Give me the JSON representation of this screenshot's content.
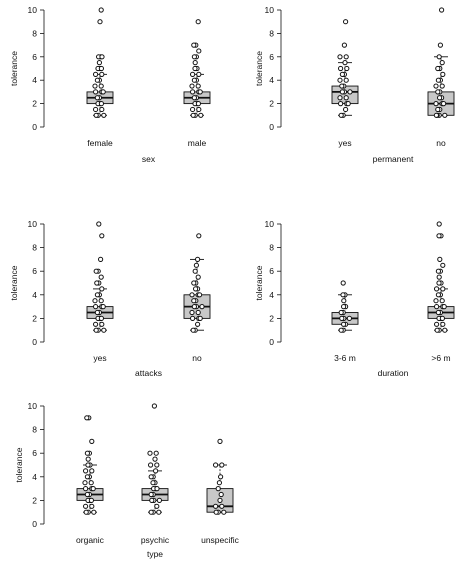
{
  "figure": {
    "colors": {
      "box_fill": "#c8c8c8",
      "line": "#111111",
      "point_fill": "#ffffff"
    }
  },
  "chart_data": [
    {
      "type": "boxplot",
      "ylabel": "tolerance",
      "xlabel": "sex",
      "ylim": [
        0,
        10
      ],
      "yticks": [
        0,
        2,
        4,
        6,
        8,
        10
      ],
      "grid": false,
      "legend": "none",
      "categories": [
        "female",
        "male"
      ],
      "boxes": [
        {
          "q1": 2,
          "median": 2.5,
          "q3": 3,
          "whisker_low": 1,
          "whisker_high": 4.5,
          "points": [
            1,
            1,
            1,
            1.5,
            1.5,
            2,
            2,
            2,
            2.5,
            2.5,
            3,
            3,
            3,
            3.5,
            3.5,
            4,
            4,
            4.5,
            4.5,
            5,
            5,
            5,
            5.5,
            6,
            6,
            6,
            9,
            10
          ]
        },
        {
          "q1": 2,
          "median": 2.5,
          "q3": 3,
          "whisker_low": 1,
          "whisker_high": 4.5,
          "points": [
            1,
            1,
            1,
            1.5,
            1.5,
            2,
            2,
            2,
            2.5,
            2.5,
            3,
            3,
            3,
            3.5,
            3.5,
            4,
            4,
            4.5,
            4.5,
            5,
            5,
            5.5,
            6,
            6,
            6.5,
            7,
            7,
            9
          ]
        }
      ]
    },
    {
      "type": "boxplot",
      "ylabel": "tolerance",
      "xlabel": "permanent",
      "ylim": [
        0,
        10
      ],
      "yticks": [
        0,
        2,
        4,
        6,
        8,
        10
      ],
      "grid": false,
      "legend": "none",
      "categories": [
        "yes",
        "no"
      ],
      "boxes": [
        {
          "q1": 2,
          "median": 3,
          "q3": 3.5,
          "whisker_low": 1,
          "whisker_high": 5.5,
          "points": [
            1,
            1,
            1.5,
            2,
            2,
            2,
            2.5,
            2.5,
            3,
            3,
            3,
            3.5,
            3.5,
            4,
            4,
            4.5,
            4.5,
            5,
            5,
            5.5,
            6,
            6,
            7,
            9
          ]
        },
        {
          "q1": 1,
          "median": 2,
          "q3": 3,
          "whisker_low": 1,
          "whisker_high": 6,
          "points": [
            1,
            1,
            1,
            1,
            1.5,
            1.5,
            2,
            2,
            2,
            2.5,
            2.5,
            3,
            3,
            3.5,
            3.5,
            4,
            4,
            4.5,
            5,
            5,
            5.5,
            6,
            7,
            10
          ]
        }
      ]
    },
    {
      "type": "boxplot",
      "ylabel": "tolerance",
      "xlabel": "attacks",
      "ylim": [
        0,
        10
      ],
      "yticks": [
        0,
        2,
        4,
        6,
        8,
        10
      ],
      "grid": false,
      "legend": "none",
      "categories": [
        "yes",
        "no"
      ],
      "boxes": [
        {
          "q1": 2,
          "median": 2.5,
          "q3": 3,
          "whisker_low": 1,
          "whisker_high": 4.5,
          "points": [
            1,
            1,
            1,
            1.5,
            1.5,
            2,
            2,
            2,
            2.5,
            2.5,
            3,
            3,
            3,
            3.5,
            3.5,
            4,
            4,
            4.5,
            5,
            5,
            5.5,
            6,
            6,
            7,
            9,
            10
          ]
        },
        {
          "q1": 2,
          "median": 3,
          "q3": 4,
          "whisker_low": 1,
          "whisker_high": 7,
          "points": [
            1,
            1,
            1.5,
            2,
            2,
            2,
            2.5,
            2.5,
            3,
            3,
            3,
            3.5,
            3.5,
            4,
            4,
            4,
            4.5,
            4.5,
            5,
            5,
            5.5,
            6,
            6.5,
            7,
            9
          ]
        }
      ]
    },
    {
      "type": "boxplot",
      "ylabel": "tolerance",
      "xlabel": "duration",
      "ylim": [
        0,
        10
      ],
      "yticks": [
        0,
        2,
        4,
        6,
        8,
        10
      ],
      "grid": false,
      "legend": "none",
      "categories": [
        "3-6 m",
        ">6 m"
      ],
      "boxes": [
        {
          "q1": 1.5,
          "median": 2,
          "q3": 2.5,
          "whisker_low": 1,
          "whisker_high": 4,
          "points": [
            1,
            1,
            1.5,
            1.5,
            2,
            2,
            2,
            2.5,
            2.5,
            3,
            3,
            3.5,
            4,
            4,
            5
          ]
        },
        {
          "q1": 2,
          "median": 2.5,
          "q3": 3,
          "whisker_low": 1,
          "whisker_high": 4.5,
          "points": [
            1,
            1,
            1,
            1.5,
            1.5,
            2,
            2,
            2,
            2.5,
            2.5,
            3,
            3,
            3,
            3.5,
            3.5,
            4,
            4,
            4.5,
            4.5,
            5,
            5,
            5.5,
            6,
            6,
            6.5,
            7,
            9,
            9,
            10
          ]
        }
      ]
    },
    {
      "type": "boxplot",
      "ylabel": "tolerance",
      "xlabel": "type",
      "ylim": [
        0,
        10
      ],
      "yticks": [
        0,
        2,
        4,
        6,
        8,
        10
      ],
      "grid": false,
      "legend": "none",
      "categories": [
        "organic",
        "psychic",
        "unspecific"
      ],
      "boxes": [
        {
          "q1": 2,
          "median": 2.5,
          "q3": 3,
          "whisker_low": 1,
          "whisker_high": 5,
          "points": [
            1,
            1,
            1,
            1.5,
            1.5,
            2,
            2,
            2,
            2.5,
            2.5,
            3,
            3,
            3,
            3.5,
            3.5,
            4,
            4,
            4.5,
            4.5,
            5,
            5,
            5.5,
            6,
            6,
            7,
            9,
            9
          ]
        },
        {
          "q1": 2,
          "median": 2.5,
          "q3": 3,
          "whisker_low": 1,
          "whisker_high": 4.5,
          "points": [
            1,
            1,
            1,
            1.5,
            2,
            2,
            2,
            2.5,
            2.5,
            3,
            3,
            3,
            3.5,
            3.5,
            4,
            4,
            4.5,
            5,
            5,
            5.5,
            6,
            6,
            10
          ]
        },
        {
          "q1": 1,
          "median": 1.5,
          "q3": 3,
          "whisker_low": 1,
          "whisker_high": 5,
          "points": [
            1,
            1,
            1,
            1.5,
            1.5,
            2,
            2.5,
            3,
            3.5,
            4,
            5,
            5,
            7
          ]
        }
      ]
    }
  ]
}
